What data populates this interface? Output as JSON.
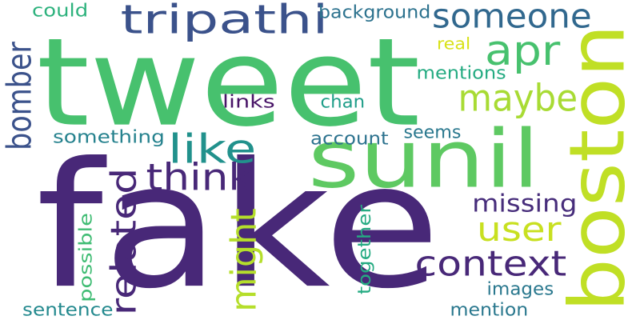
{
  "words": [
    {
      "text": "fake",
      "color": "#482878"
    },
    {
      "text": "tweet",
      "color": "#47c16e"
    },
    {
      "text": "sunil",
      "color": "#5ec962"
    },
    {
      "text": "boston",
      "color": "#c0df25"
    },
    {
      "text": "tripathi",
      "color": "#3b528b"
    },
    {
      "text": "someone",
      "color": "#31688e"
    },
    {
      "text": "apr",
      "color": "#47c16e"
    },
    {
      "text": "maybe",
      "color": "#a8db34"
    },
    {
      "text": "like",
      "color": "#21918c"
    },
    {
      "text": "think",
      "color": "#482878"
    },
    {
      "text": "bomber",
      "color": "#3b528b"
    },
    {
      "text": "related",
      "color": "#482878"
    },
    {
      "text": "might",
      "color": "#b5de2b"
    },
    {
      "text": "context",
      "color": "#482878"
    },
    {
      "text": "user",
      "color": "#c8e020"
    },
    {
      "text": "missing",
      "color": "#472d7b"
    },
    {
      "text": "something",
      "color": "#26828e"
    },
    {
      "text": "account",
      "color": "#2c728e"
    },
    {
      "text": "seems",
      "color": "#2a788e"
    },
    {
      "text": "links",
      "color": "#481467"
    },
    {
      "text": "chan",
      "color": "#1f9e89"
    },
    {
      "text": "mentions",
      "color": "#25ab82"
    },
    {
      "text": "real",
      "color": "#d8e219"
    },
    {
      "text": "background",
      "color": "#2c728e"
    },
    {
      "text": "could",
      "color": "#2db27d"
    },
    {
      "text": "possible",
      "color": "#3fbc73"
    },
    {
      "text": "together",
      "color": "#25ab82"
    },
    {
      "text": "images",
      "color": "#2a788e"
    },
    {
      "text": "sentence",
      "color": "#23898e"
    },
    {
      "text": "mention",
      "color": "#2a788e"
    }
  ]
}
